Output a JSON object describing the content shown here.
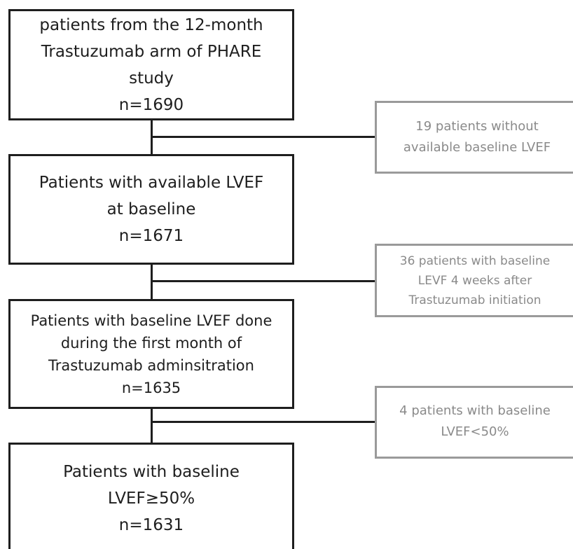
{
  "flow": {
    "main_boxes": [
      {
        "lines": [
          "patients from the 12-month",
          "Trastuzumab arm of PHARE",
          "study",
          "n=1690"
        ]
      },
      {
        "lines": [
          "Patients with available LVEF",
          "at baseline",
          "n=1671"
        ]
      },
      {
        "lines": [
          "Patients with baseline LVEF done",
          "during the first month of",
          "Trastuzumab adminsitration",
          "n=1635"
        ]
      },
      {
        "lines": [
          "Patients with baseline",
          "LVEF≥50%",
          "n=1631"
        ]
      }
    ],
    "exclusion_boxes": [
      {
        "lines": [
          "19 patients without",
          "available baseline LVEF"
        ]
      },
      {
        "lines": [
          "36 patients with baseline",
          "LEVF 4 weeks after",
          "Trastuzumab initiation"
        ]
      },
      {
        "lines": [
          "4 patients with baseline",
          "LVEF<50%"
        ]
      }
    ]
  },
  "colors": {
    "main_border": "#1e1e1e",
    "exclusion_border": "#9a9a9a",
    "exclusion_text": "#8a8a8a"
  }
}
